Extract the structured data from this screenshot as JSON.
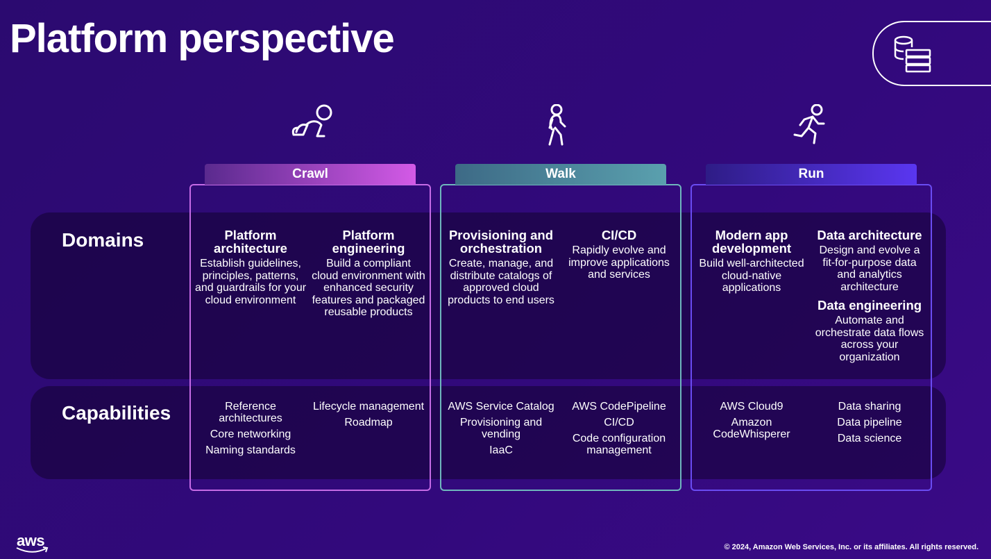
{
  "title": "Platform perspective",
  "row_labels": {
    "domains": "Domains",
    "capabilities": "Capabilities"
  },
  "stages": [
    {
      "name": "Crawl",
      "domains": [
        [
          {
            "heading": "Platform architecture",
            "text": "Establish guidelines, principles, patterns, and guardrails for your cloud environment"
          }
        ],
        [
          {
            "heading": "Platform engineering",
            "text": "Build a compliant cloud environment with enhanced security features and packaged reusable products"
          }
        ]
      ],
      "capabilities": [
        [
          "Reference architectures",
          "Core networking",
          "Naming standards"
        ],
        [
          "Lifecycle management",
          "Roadmap"
        ]
      ]
    },
    {
      "name": "Walk",
      "domains": [
        [
          {
            "heading": "Provisioning and orchestration",
            "text": "Create, manage, and distribute catalogs of approved cloud products to end users"
          }
        ],
        [
          {
            "heading": "CI/CD",
            "text": "Rapidly evolve and improve applications and services"
          }
        ]
      ],
      "capabilities": [
        [
          "AWS Service Catalog",
          "Provisioning and vending",
          "IaaC"
        ],
        [
          "AWS CodePipeline",
          "CI/CD",
          "Code configuration management"
        ]
      ]
    },
    {
      "name": "Run",
      "domains": [
        [
          {
            "heading": "Modern app development",
            "text": "Build well-architected cloud-native applications"
          }
        ],
        [
          {
            "heading": "Data architecture",
            "text": "Design and evolve a fit-for-purpose data and analytics architecture"
          },
          {
            "heading": "Data engineering",
            "text": "Automate and orchestrate data flows across your organization"
          }
        ]
      ],
      "capabilities": [
        [
          "AWS Cloud9",
          "Amazon CodeWhisperer"
        ],
        [
          "Data sharing",
          "Data pipeline",
          "Data science"
        ]
      ]
    }
  ],
  "logo": "aws",
  "footer": "© 2024, Amazon Web Services, Inc. or its affiliates. All rights reserved."
}
